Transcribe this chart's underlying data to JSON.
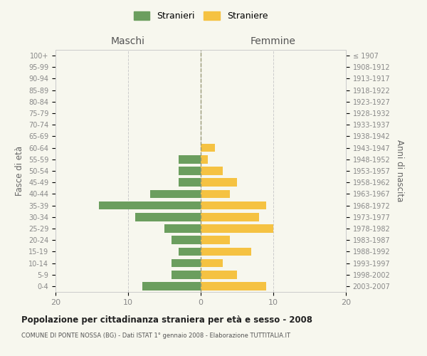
{
  "age_groups": [
    "0-4",
    "5-9",
    "10-14",
    "15-19",
    "20-24",
    "25-29",
    "30-34",
    "35-39",
    "40-44",
    "45-49",
    "50-54",
    "55-59",
    "60-64",
    "65-69",
    "70-74",
    "75-79",
    "80-84",
    "85-89",
    "90-94",
    "95-99",
    "100+"
  ],
  "birth_years": [
    "2003-2007",
    "1998-2002",
    "1993-1997",
    "1988-1992",
    "1983-1987",
    "1978-1982",
    "1973-1977",
    "1968-1972",
    "1963-1967",
    "1958-1962",
    "1953-1957",
    "1948-1952",
    "1943-1947",
    "1938-1942",
    "1933-1937",
    "1928-1932",
    "1923-1927",
    "1918-1922",
    "1913-1917",
    "1908-1912",
    "≤ 1907"
  ],
  "maschi": [
    8,
    4,
    4,
    3,
    4,
    5,
    9,
    14,
    7,
    3,
    3,
    3,
    0,
    0,
    0,
    0,
    0,
    0,
    0,
    0,
    0
  ],
  "femmine": [
    9,
    5,
    3,
    7,
    4,
    10,
    8,
    9,
    4,
    5,
    3,
    1,
    2,
    0,
    0,
    0,
    0,
    0,
    0,
    0,
    0
  ],
  "maschi_color": "#6b9e5e",
  "femmine_color": "#f5c242",
  "title": "Popolazione per cittadinanza straniera per età e sesso - 2008",
  "subtitle": "COMUNE DI PONTE NOSSA (BG) - Dati ISTAT 1° gennaio 2008 - Elaborazione TUTTITALIA.IT",
  "ylabel_left": "Fasce di età",
  "ylabel_right": "Anni di nascita",
  "xlabel_left": "Maschi",
  "xlabel_right": "Femmine",
  "legend_stranieri": "Stranieri",
  "legend_straniere": "Straniere",
  "xlim": 20,
  "background_color": "#f7f7ee",
  "grid_color": "#cccccc",
  "tick_color": "#888888",
  "spine_color": "#cccccc",
  "center_line_color": "#999977"
}
